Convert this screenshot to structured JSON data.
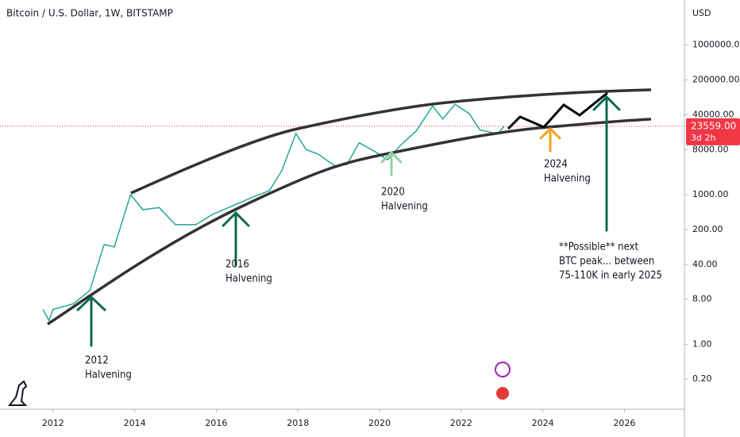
{
  "chart_data": {
    "type": "line",
    "title": "Bitcoin / U.S. Dollar, 1W, BITSTAMP",
    "currency": "USD",
    "log_scale": true,
    "grid": false,
    "series": [
      {
        "color": "#26a69a",
        "x": [
          2011.75,
          2011.9,
          2012.0,
          2012.5,
          2012.9,
          2013.25,
          2013.5,
          2013.9,
          2014.2,
          2014.6,
          2015.0,
          2015.5,
          2015.9,
          2016.5,
          2016.9,
          2017.3,
          2017.6,
          2017.95,
          2018.2,
          2018.5,
          2018.9,
          2019.2,
          2019.5,
          2019.9,
          2020.2,
          2020.5,
          2020.9,
          2021.3,
          2021.55,
          2021.85,
          2022.2,
          2022.45,
          2022.9,
          2023.05
        ],
        "values": [
          5,
          3,
          5,
          6.5,
          12,
          100,
          90,
          1000,
          500,
          550,
          250,
          250,
          400,
          650,
          900,
          1200,
          3000,
          17000,
          8000,
          6500,
          3800,
          4000,
          11000,
          7200,
          5000,
          9500,
          19000,
          60000,
          33000,
          65000,
          42000,
          20000,
          16500,
          23559
        ]
      }
    ],
    "last_price": 23559,
    "last_price_label": "23559.00",
    "countdown": "3d 2h",
    "xlim": [
      2010.7,
      2027.47
    ],
    "xticks": [
      2012,
      2014,
      2016,
      2018,
      2020,
      2022,
      2024,
      2026
    ],
    "ylim": [
      0.05,
      8000000
    ],
    "yticks": [
      {
        "value": 0.2,
        "label": "0.20"
      },
      {
        "value": 1,
        "label": "1.00"
      },
      {
        "value": 8,
        "label": "8.00"
      },
      {
        "value": 40,
        "label": "40.00"
      },
      {
        "value": 200,
        "label": "200.00"
      },
      {
        "value": 1000,
        "label": "1000.00"
      },
      {
        "value": 8000,
        "label": "8000.00"
      },
      {
        "value": 40000,
        "label": "40000.00"
      },
      {
        "value": 200000,
        "label": "200000.00"
      },
      {
        "value": 1000000,
        "label": "1000000.00"
      }
    ],
    "annotations": [
      [
        "2012",
        "Halvening"
      ],
      [
        "2016",
        "Halvening"
      ],
      [
        "2020",
        "Halvening"
      ],
      [
        "2024",
        "Halvening"
      ],
      [
        "**Possible** next",
        "BTC peak... between",
        "75-110K in early 2025"
      ]
    ]
  }
}
